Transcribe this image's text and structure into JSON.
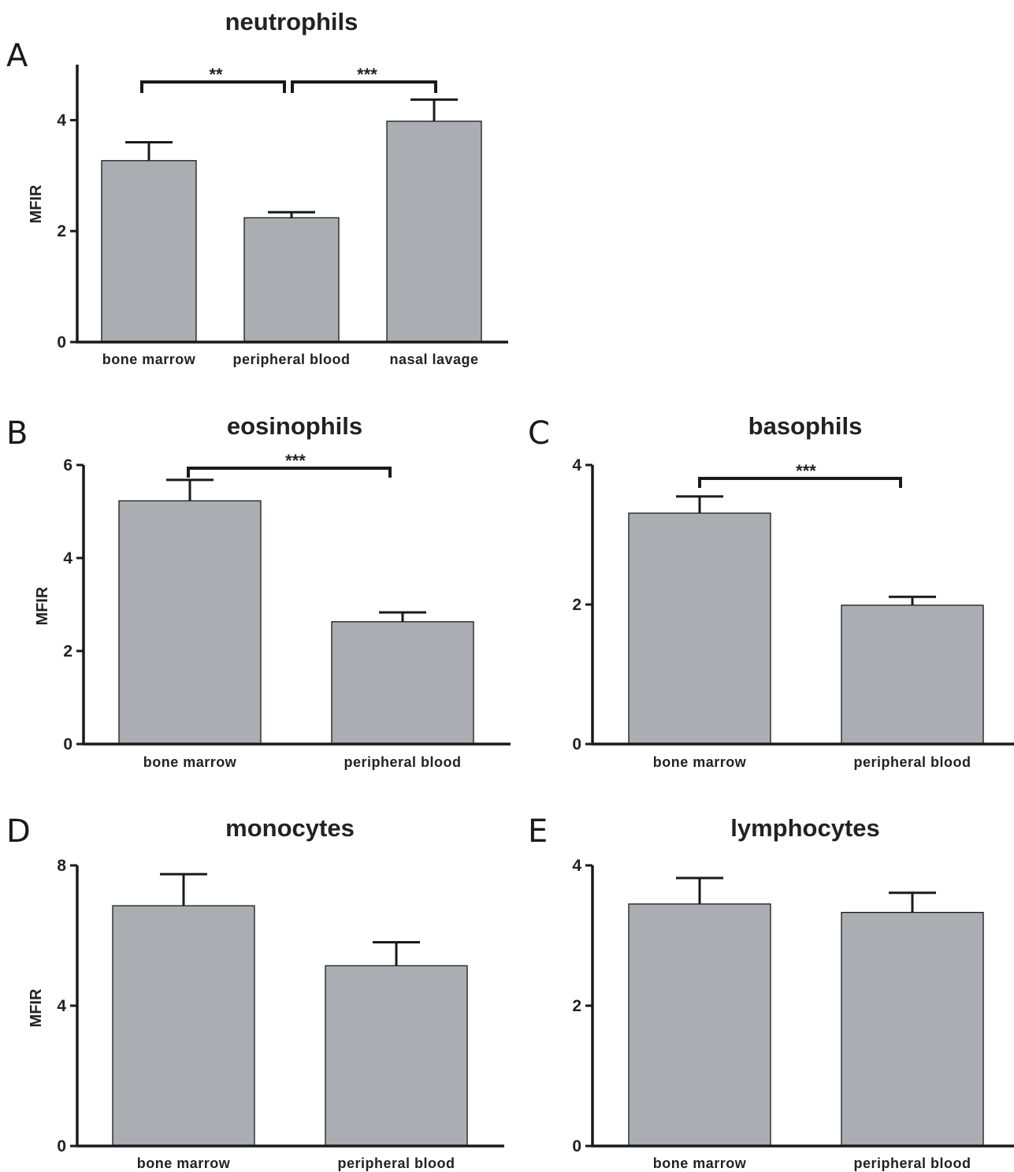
{
  "colors": {
    "bar_fill": "#abadb3",
    "stroke": "#1a1a1a",
    "background": "#ffffff"
  },
  "chart_data": [
    {
      "panel": "A",
      "type": "bar",
      "title": "neutrophils",
      "ylabel": "MFIR",
      "xlabel": "",
      "ylim": [
        0,
        5
      ],
      "yticks": [
        0,
        2,
        4
      ],
      "categories": [
        "bone marrow",
        "peripheral blood",
        "nasal lavage"
      ],
      "values": [
        3.27,
        2.24,
        3.98
      ],
      "errors": [
        0.33,
        0.1,
        0.39
      ],
      "significance": [
        {
          "from": 0,
          "to": 1,
          "label": "**"
        },
        {
          "from": 1,
          "to": 2,
          "label": "***"
        }
      ],
      "grid": false
    },
    {
      "panel": "B",
      "type": "bar",
      "title": "eosinophils",
      "ylabel": "MFIR",
      "xlabel": "",
      "ylim": [
        0,
        6
      ],
      "yticks": [
        0,
        2,
        4,
        6
      ],
      "categories": [
        "bone marrow",
        "peripheral blood"
      ],
      "values": [
        5.23,
        2.63
      ],
      "errors": [
        0.45,
        0.2
      ],
      "significance": [
        {
          "from": 0,
          "to": 1,
          "label": "***"
        }
      ],
      "grid": false
    },
    {
      "panel": "C",
      "type": "bar",
      "title": "basophils",
      "ylabel": "",
      "xlabel": "",
      "ylim": [
        0,
        4
      ],
      "yticks": [
        0,
        2,
        4
      ],
      "categories": [
        "bone marrow",
        "peripheral blood"
      ],
      "values": [
        3.31,
        1.99
      ],
      "errors": [
        0.24,
        0.12
      ],
      "significance": [
        {
          "from": 0,
          "to": 1,
          "label": "***"
        }
      ],
      "grid": false
    },
    {
      "panel": "D",
      "type": "bar",
      "title": "monocytes",
      "ylabel": "MFIR",
      "xlabel": "",
      "ylim": [
        0,
        8
      ],
      "yticks": [
        0,
        4,
        8
      ],
      "categories": [
        "bone marrow",
        "peripheral blood"
      ],
      "values": [
        6.85,
        5.14
      ],
      "errors": [
        0.9,
        0.67
      ],
      "significance": [],
      "grid": false
    },
    {
      "panel": "E",
      "type": "bar",
      "title": "lymphocytes",
      "ylabel": "",
      "xlabel": "",
      "ylim": [
        0,
        4
      ],
      "yticks": [
        0,
        2,
        4
      ],
      "categories": [
        "bone marrow",
        "peripheral blood"
      ],
      "values": [
        3.45,
        3.33
      ],
      "errors": [
        0.37,
        0.28
      ],
      "significance": [],
      "grid": false
    }
  ]
}
